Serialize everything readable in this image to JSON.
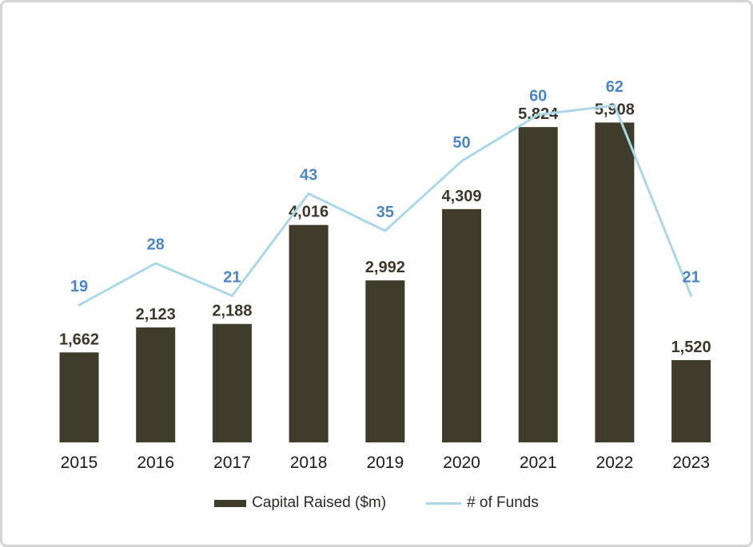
{
  "chart_data": {
    "type": "bar+line combo",
    "title": "",
    "categories": [
      "2015",
      "2016",
      "2017",
      "2018",
      "2019",
      "2020",
      "2021",
      "2022",
      "2023"
    ],
    "series": [
      {
        "name": "Capital Raised ($m)",
        "type": "bar",
        "values": [
          1662,
          2123,
          2188,
          4016,
          2992,
          4309,
          5824,
          5908,
          1520
        ],
        "value_labels": [
          "1,662",
          "2,123",
          "2,188",
          "4,016",
          "2,992",
          "4,309",
          "5,824",
          "5,908",
          "1,520"
        ],
        "color": "#403C2B",
        "label_color": "#3B382B"
      },
      {
        "name": "# of Funds",
        "type": "line",
        "values": [
          19,
          28,
          21,
          43,
          35,
          50,
          60,
          62,
          21
        ],
        "value_labels": [
          "19",
          "28",
          "21",
          "43",
          "35",
          "50",
          "60",
          "62",
          "21"
        ],
        "color": "#A9D8E8",
        "label_color": "#4A86C8"
      }
    ],
    "xlabel": "",
    "ylabel": "",
    "y_axis_visible": false,
    "gridlines": false,
    "axis_label_color": "#1A1A1A",
    "legend_position": "bottom",
    "data_labels": "shown above bars and above line points"
  },
  "legend": {
    "items": [
      {
        "label": "Capital Raised ($m)"
      },
      {
        "label": "# of Funds"
      }
    ]
  },
  "frame": {
    "border_color": "#D5D5D5",
    "background_color": "#FFFFFF"
  }
}
